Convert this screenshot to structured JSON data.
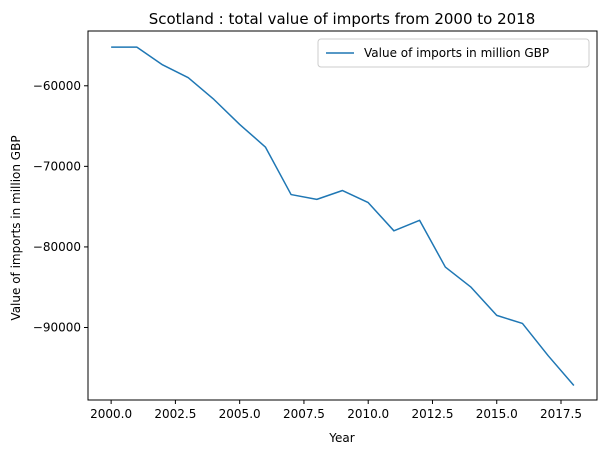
{
  "chart_data": {
    "type": "line",
    "title": "Scotland : total value of imports from 2000 to 2018",
    "xlabel": "Year",
    "ylabel": "Value of imports in million GBP",
    "xlim": [
      1999.1,
      2018.9
    ],
    "ylim": [
      -99000,
      -53200
    ],
    "x_ticks": [
      2000,
      2002.5,
      2005,
      2007.5,
      2010,
      2012.5,
      2015,
      2017.5
    ],
    "x_tick_labels": [
      "2000.0",
      "2002.5",
      "2005.0",
      "2007.5",
      "2010.0",
      "2012.5",
      "2015.0",
      "2017.5"
    ],
    "y_ticks": [
      -60000,
      -70000,
      -80000,
      -90000
    ],
    "y_tick_labels": [
      "−60000",
      "−70000",
      "−80000",
      "−90000"
    ],
    "grid": false,
    "legend_position": "top-right",
    "series": [
      {
        "name": "Value of imports in million GBP",
        "color": "#1f77b4",
        "x": [
          2000,
          2001,
          2002,
          2003,
          2004,
          2005,
          2006,
          2007,
          2008,
          2009,
          2010,
          2011,
          2012,
          2013,
          2014,
          2015,
          2016,
          2017,
          2018
        ],
        "y": [
          -55200,
          -55200,
          -57400,
          -59000,
          -61700,
          -64800,
          -67600,
          -73500,
          -74100,
          -73000,
          -74500,
          -78000,
          -76700,
          -82500,
          -85000,
          -88500,
          -89500,
          -93500,
          -97200
        ]
      }
    ]
  }
}
